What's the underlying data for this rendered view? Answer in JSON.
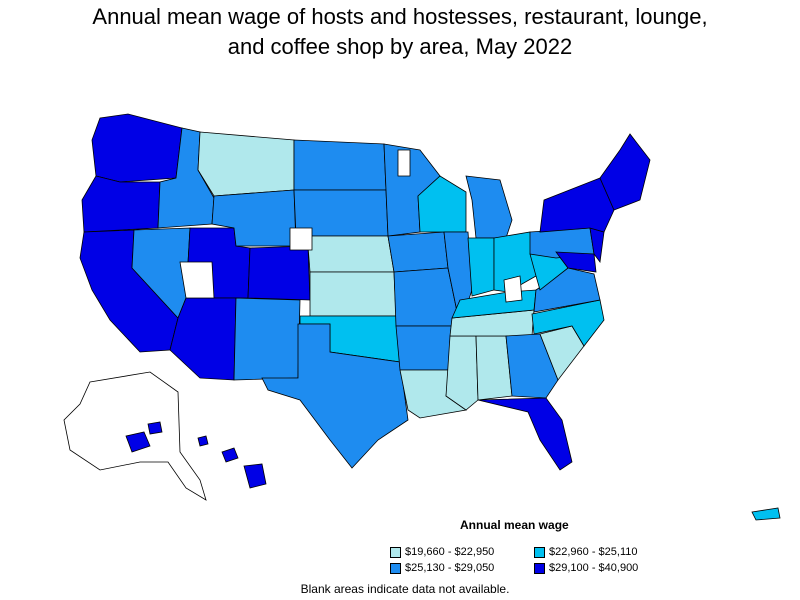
{
  "title_line1": "Annual mean wage of hosts and hostesses, restaurant, lounge,",
  "title_line2": "and coffee shop by area, May 2022",
  "legend": {
    "title": "Annual mean wage",
    "items": [
      {
        "label": "$19,660 - $22,950",
        "color": "#b0e8ec"
      },
      {
        "label": "$22,960 - $25,110",
        "color": "#00c0f0"
      },
      {
        "label": "$25,130 - $29,050",
        "color": "#1e8cf0"
      },
      {
        "label": "$29,100 - $40,900",
        "color": "#0000e6"
      }
    ]
  },
  "note": "Blank areas indicate data not available."
}
